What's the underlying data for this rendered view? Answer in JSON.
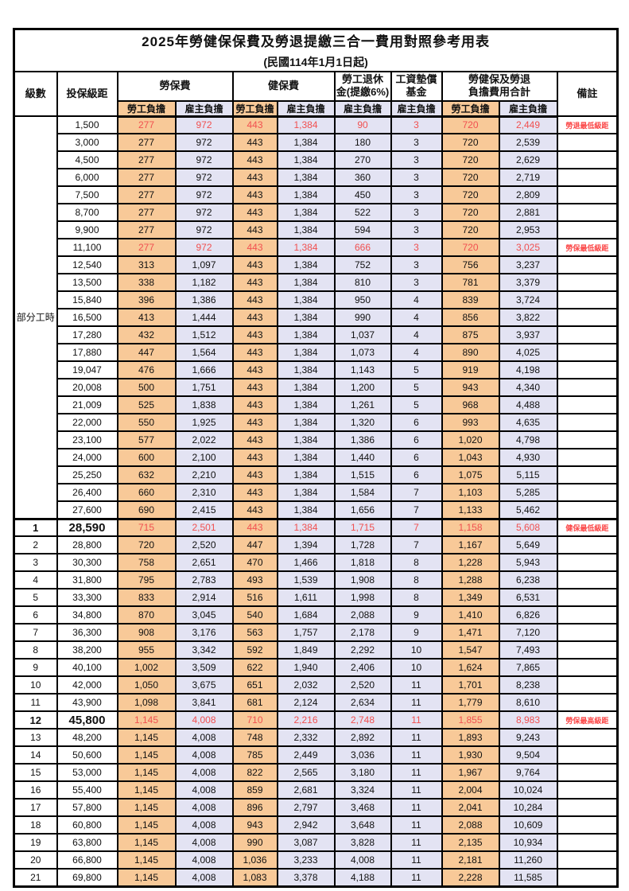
{
  "title": "2025年勞健保保費及勞退提繳三合一費用對照參考用表",
  "subtitle": "(民國114年1月1日起)",
  "header": {
    "level": "級數",
    "salary": "投保級距",
    "labor": "勞保費",
    "health": "健保費",
    "pension_line1": "勞工退休",
    "pension_line2": "金(提繳6%)",
    "wage_line1": "工資墊償",
    "wage_line2": "基金",
    "total_line1": "勞健保及勞退",
    "total_line2": "負擔費用合計",
    "remark": "備註",
    "employee": "勞工負擔",
    "employer": "雇主負擔"
  },
  "part_time_label": "部分工時",
  "part_time_rowspan": 23,
  "colors": {
    "employee_bg": "#F8C998",
    "employer_bg": "#E3E3F3",
    "highlight_text": "#F15050",
    "remark_text": "#FB4545"
  },
  "rows": [
    {
      "level": "",
      "salary": "1,500",
      "values": [
        "277",
        "972",
        "443",
        "1,384",
        "90",
        "3",
        "720",
        "2,449"
      ],
      "remark": "勞退最低級距",
      "highlight": true,
      "big": false,
      "section_start": false
    },
    {
      "level": "",
      "salary": "3,000",
      "values": [
        "277",
        "972",
        "443",
        "1,384",
        "180",
        "3",
        "720",
        "2,539"
      ],
      "remark": "",
      "highlight": false,
      "big": false,
      "section_start": false
    },
    {
      "level": "",
      "salary": "4,500",
      "values": [
        "277",
        "972",
        "443",
        "1,384",
        "270",
        "3",
        "720",
        "2,629"
      ],
      "remark": "",
      "highlight": false,
      "big": false,
      "section_start": false
    },
    {
      "level": "",
      "salary": "6,000",
      "values": [
        "277",
        "972",
        "443",
        "1,384",
        "360",
        "3",
        "720",
        "2,719"
      ],
      "remark": "",
      "highlight": false,
      "big": false,
      "section_start": false
    },
    {
      "level": "",
      "salary": "7,500",
      "values": [
        "277",
        "972",
        "443",
        "1,384",
        "450",
        "3",
        "720",
        "2,809"
      ],
      "remark": "",
      "highlight": false,
      "big": false,
      "section_start": false
    },
    {
      "level": "",
      "salary": "8,700",
      "values": [
        "277",
        "972",
        "443",
        "1,384",
        "522",
        "3",
        "720",
        "2,881"
      ],
      "remark": "",
      "highlight": false,
      "big": false,
      "section_start": false
    },
    {
      "level": "",
      "salary": "9,900",
      "values": [
        "277",
        "972",
        "443",
        "1,384",
        "594",
        "3",
        "720",
        "2,953"
      ],
      "remark": "",
      "highlight": false,
      "big": false,
      "section_start": false
    },
    {
      "level": "",
      "salary": "11,100",
      "values": [
        "277",
        "972",
        "443",
        "1,384",
        "666",
        "3",
        "720",
        "3,025"
      ],
      "remark": "勞保最低級距",
      "highlight": true,
      "big": false,
      "section_start": false
    },
    {
      "level": "",
      "salary": "12,540",
      "values": [
        "313",
        "1,097",
        "443",
        "1,384",
        "752",
        "3",
        "756",
        "3,237"
      ],
      "remark": "",
      "highlight": false,
      "big": false,
      "section_start": false
    },
    {
      "level": "",
      "salary": "13,500",
      "values": [
        "338",
        "1,182",
        "443",
        "1,384",
        "810",
        "3",
        "781",
        "3,379"
      ],
      "remark": "",
      "highlight": false,
      "big": false,
      "section_start": false
    },
    {
      "level": "",
      "salary": "15,840",
      "values": [
        "396",
        "1,386",
        "443",
        "1,384",
        "950",
        "4",
        "839",
        "3,724"
      ],
      "remark": "",
      "highlight": false,
      "big": false,
      "section_start": false
    },
    {
      "level": "",
      "salary": "16,500",
      "values": [
        "413",
        "1,444",
        "443",
        "1,384",
        "990",
        "4",
        "856",
        "3,822"
      ],
      "remark": "",
      "highlight": false,
      "big": false,
      "section_start": false
    },
    {
      "level": "",
      "salary": "17,280",
      "values": [
        "432",
        "1,512",
        "443",
        "1,384",
        "1,037",
        "4",
        "875",
        "3,937"
      ],
      "remark": "",
      "highlight": false,
      "big": false,
      "section_start": false
    },
    {
      "level": "",
      "salary": "17,880",
      "values": [
        "447",
        "1,564",
        "443",
        "1,384",
        "1,073",
        "4",
        "890",
        "4,025"
      ],
      "remark": "",
      "highlight": false,
      "big": false,
      "section_start": false
    },
    {
      "level": "",
      "salary": "19,047",
      "values": [
        "476",
        "1,666",
        "443",
        "1,384",
        "1,143",
        "5",
        "919",
        "4,198"
      ],
      "remark": "",
      "highlight": false,
      "big": false,
      "section_start": false
    },
    {
      "level": "",
      "salary": "20,008",
      "values": [
        "500",
        "1,751",
        "443",
        "1,384",
        "1,200",
        "5",
        "943",
        "4,340"
      ],
      "remark": "",
      "highlight": false,
      "big": false,
      "section_start": false
    },
    {
      "level": "",
      "salary": "21,009",
      "values": [
        "525",
        "1,838",
        "443",
        "1,384",
        "1,261",
        "5",
        "968",
        "4,488"
      ],
      "remark": "",
      "highlight": false,
      "big": false,
      "section_start": false
    },
    {
      "level": "",
      "salary": "22,000",
      "values": [
        "550",
        "1,925",
        "443",
        "1,384",
        "1,320",
        "6",
        "993",
        "4,635"
      ],
      "remark": "",
      "highlight": false,
      "big": false,
      "section_start": false
    },
    {
      "level": "",
      "salary": "23,100",
      "values": [
        "577",
        "2,022",
        "443",
        "1,384",
        "1,386",
        "6",
        "1,020",
        "4,798"
      ],
      "remark": "",
      "highlight": false,
      "big": false,
      "section_start": false
    },
    {
      "level": "",
      "salary": "24,000",
      "values": [
        "600",
        "2,100",
        "443",
        "1,384",
        "1,440",
        "6",
        "1,043",
        "4,930"
      ],
      "remark": "",
      "highlight": false,
      "big": false,
      "section_start": false
    },
    {
      "level": "",
      "salary": "25,250",
      "values": [
        "632",
        "2,210",
        "443",
        "1,384",
        "1,515",
        "6",
        "1,075",
        "5,115"
      ],
      "remark": "",
      "highlight": false,
      "big": false,
      "section_start": false
    },
    {
      "level": "",
      "salary": "26,400",
      "values": [
        "660",
        "2,310",
        "443",
        "1,384",
        "1,584",
        "7",
        "1,103",
        "5,285"
      ],
      "remark": "",
      "highlight": false,
      "big": false,
      "section_start": false
    },
    {
      "level": "",
      "salary": "27,600",
      "values": [
        "690",
        "2,415",
        "443",
        "1,384",
        "1,656",
        "7",
        "1,133",
        "5,462"
      ],
      "remark": "",
      "highlight": false,
      "big": false,
      "section_start": false
    },
    {
      "level": "1",
      "salary": "28,590",
      "values": [
        "715",
        "2,501",
        "443",
        "1,384",
        "1,715",
        "7",
        "1,158",
        "5,608"
      ],
      "remark": "健保最低級距",
      "highlight": true,
      "big": true,
      "section_start": true
    },
    {
      "level": "2",
      "salary": "28,800",
      "values": [
        "720",
        "2,520",
        "447",
        "1,394",
        "1,728",
        "7",
        "1,167",
        "5,649"
      ],
      "remark": "",
      "highlight": false,
      "big": false,
      "section_start": false
    },
    {
      "level": "3",
      "salary": "30,300",
      "values": [
        "758",
        "2,651",
        "470",
        "1,466",
        "1,818",
        "8",
        "1,228",
        "5,943"
      ],
      "remark": "",
      "highlight": false,
      "big": false,
      "section_start": false
    },
    {
      "level": "4",
      "salary": "31,800",
      "values": [
        "795",
        "2,783",
        "493",
        "1,539",
        "1,908",
        "8",
        "1,288",
        "6,238"
      ],
      "remark": "",
      "highlight": false,
      "big": false,
      "section_start": false
    },
    {
      "level": "5",
      "salary": "33,300",
      "values": [
        "833",
        "2,914",
        "516",
        "1,611",
        "1,998",
        "8",
        "1,349",
        "6,531"
      ],
      "remark": "",
      "highlight": false,
      "big": false,
      "section_start": false
    },
    {
      "level": "6",
      "salary": "34,800",
      "values": [
        "870",
        "3,045",
        "540",
        "1,684",
        "2,088",
        "9",
        "1,410",
        "6,826"
      ],
      "remark": "",
      "highlight": false,
      "big": false,
      "section_start": false
    },
    {
      "level": "7",
      "salary": "36,300",
      "values": [
        "908",
        "3,176",
        "563",
        "1,757",
        "2,178",
        "9",
        "1,471",
        "7,120"
      ],
      "remark": "",
      "highlight": false,
      "big": false,
      "section_start": false
    },
    {
      "level": "8",
      "salary": "38,200",
      "values": [
        "955",
        "3,342",
        "592",
        "1,849",
        "2,292",
        "10",
        "1,547",
        "7,493"
      ],
      "remark": "",
      "highlight": false,
      "big": false,
      "section_start": false
    },
    {
      "level": "9",
      "salary": "40,100",
      "values": [
        "1,002",
        "3,509",
        "622",
        "1,940",
        "2,406",
        "10",
        "1,624",
        "7,865"
      ],
      "remark": "",
      "highlight": false,
      "big": false,
      "section_start": false
    },
    {
      "level": "10",
      "salary": "42,000",
      "values": [
        "1,050",
        "3,675",
        "651",
        "2,032",
        "2,520",
        "11",
        "1,701",
        "8,238"
      ],
      "remark": "",
      "highlight": false,
      "big": false,
      "section_start": false
    },
    {
      "level": "11",
      "salary": "43,900",
      "values": [
        "1,098",
        "3,841",
        "681",
        "2,124",
        "2,634",
        "11",
        "1,779",
        "8,610"
      ],
      "remark": "",
      "highlight": false,
      "big": false,
      "section_start": false
    },
    {
      "level": "12",
      "salary": "45,800",
      "values": [
        "1,145",
        "4,008",
        "710",
        "2,216",
        "2,748",
        "11",
        "1,855",
        "8,983"
      ],
      "remark": "勞保最高級距",
      "highlight": true,
      "big": true,
      "section_start": false
    },
    {
      "level": "13",
      "salary": "48,200",
      "values": [
        "1,145",
        "4,008",
        "748",
        "2,332",
        "2,892",
        "11",
        "1,893",
        "9,243"
      ],
      "remark": "",
      "highlight": false,
      "big": false,
      "section_start": false
    },
    {
      "level": "14",
      "salary": "50,600",
      "values": [
        "1,145",
        "4,008",
        "785",
        "2,449",
        "3,036",
        "11",
        "1,930",
        "9,504"
      ],
      "remark": "",
      "highlight": false,
      "big": false,
      "section_start": false
    },
    {
      "level": "15",
      "salary": "53,000",
      "values": [
        "1,145",
        "4,008",
        "822",
        "2,565",
        "3,180",
        "11",
        "1,967",
        "9,764"
      ],
      "remark": "",
      "highlight": false,
      "big": false,
      "section_start": false
    },
    {
      "level": "16",
      "salary": "55,400",
      "values": [
        "1,145",
        "4,008",
        "859",
        "2,681",
        "3,324",
        "11",
        "2,004",
        "10,024"
      ],
      "remark": "",
      "highlight": false,
      "big": false,
      "section_start": false
    },
    {
      "level": "17",
      "salary": "57,800",
      "values": [
        "1,145",
        "4,008",
        "896",
        "2,797",
        "3,468",
        "11",
        "2,041",
        "10,284"
      ],
      "remark": "",
      "highlight": false,
      "big": false,
      "section_start": false
    },
    {
      "level": "18",
      "salary": "60,800",
      "values": [
        "1,145",
        "4,008",
        "943",
        "2,942",
        "3,648",
        "11",
        "2,088",
        "10,609"
      ],
      "remark": "",
      "highlight": false,
      "big": false,
      "section_start": false
    },
    {
      "level": "19",
      "salary": "63,800",
      "values": [
        "1,145",
        "4,008",
        "990",
        "3,087",
        "3,828",
        "11",
        "2,135",
        "10,934"
      ],
      "remark": "",
      "highlight": false,
      "big": false,
      "section_start": false
    },
    {
      "level": "20",
      "salary": "66,800",
      "values": [
        "1,145",
        "4,008",
        "1,036",
        "3,233",
        "4,008",
        "11",
        "2,181",
        "11,260"
      ],
      "remark": "",
      "highlight": false,
      "big": false,
      "section_start": false
    },
    {
      "level": "21",
      "salary": "69,800",
      "values": [
        "1,145",
        "4,008",
        "1,083",
        "3,378",
        "4,188",
        "11",
        "2,228",
        "11,585"
      ],
      "remark": "",
      "highlight": false,
      "big": false,
      "section_start": false
    }
  ]
}
